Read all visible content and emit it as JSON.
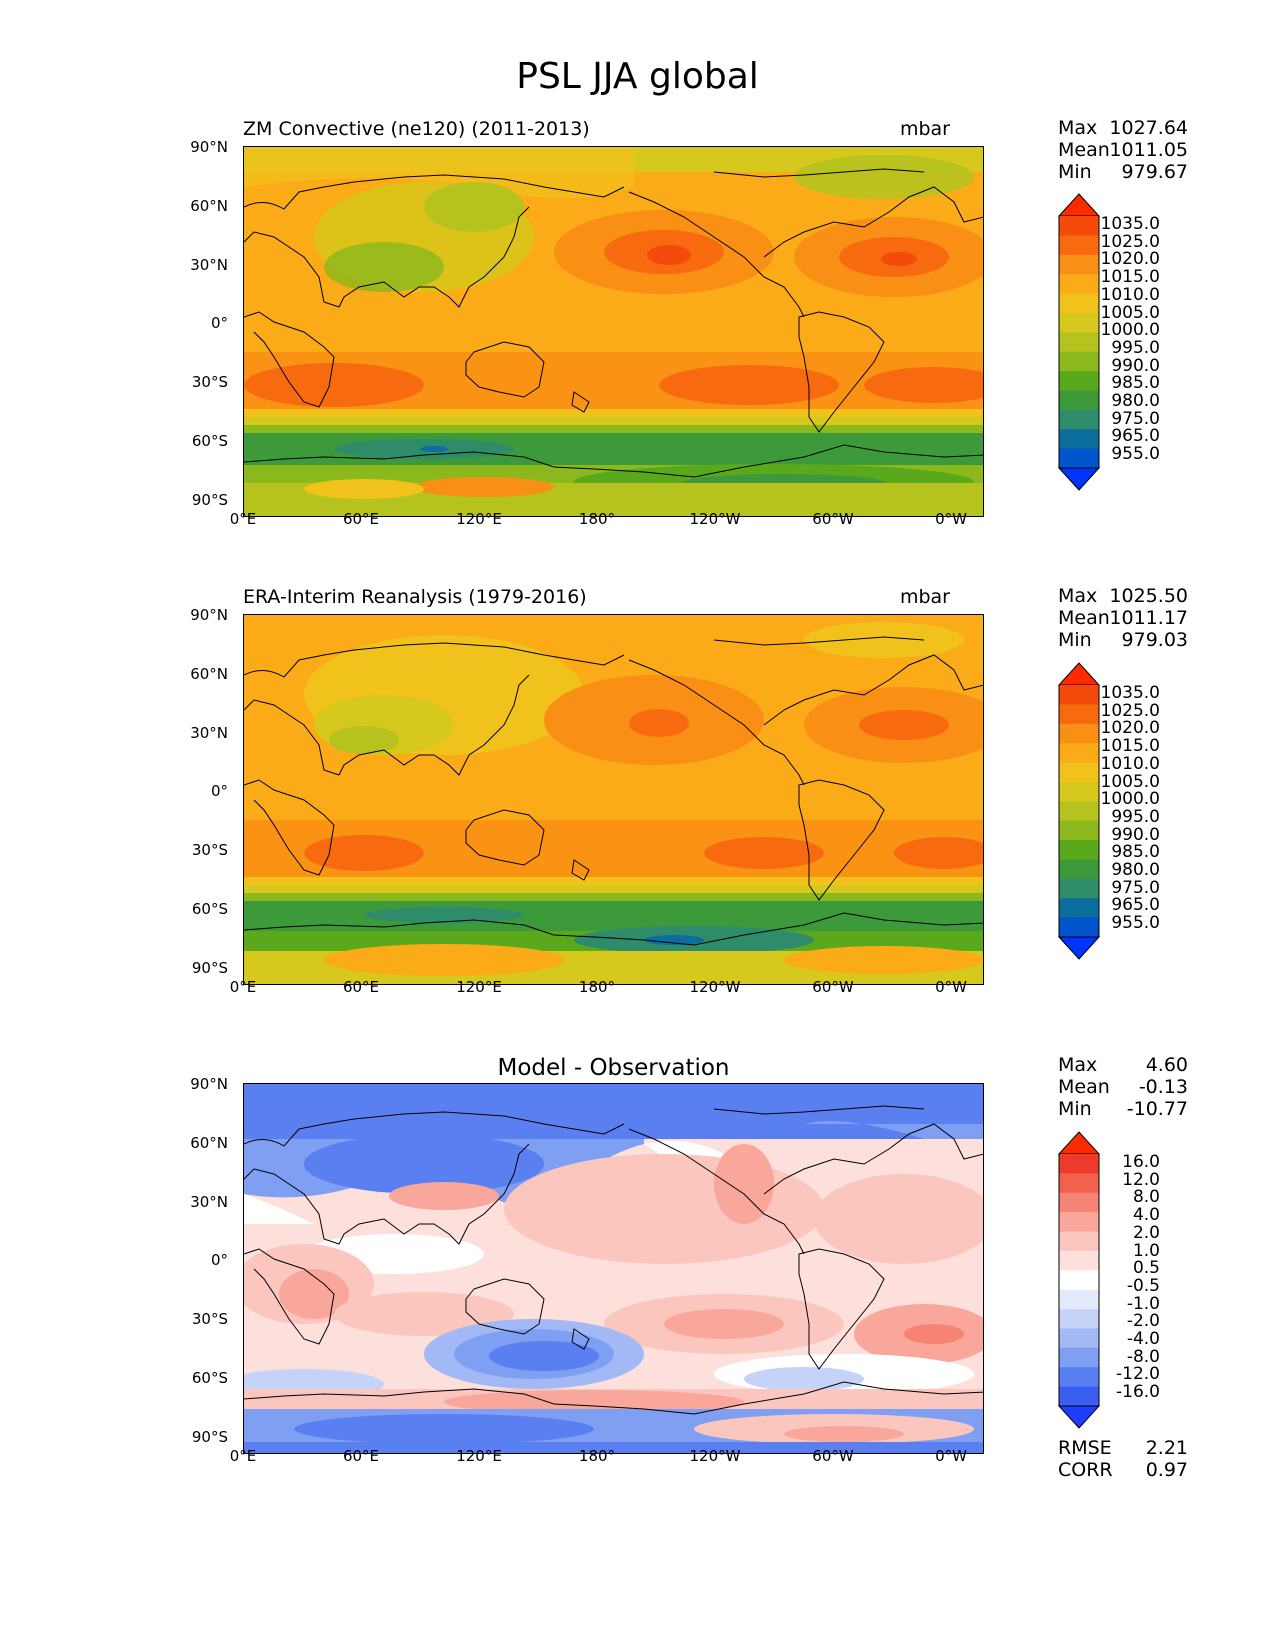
{
  "figure": {
    "title": "PSL JJA global"
  },
  "axes": {
    "lat_labels": [
      "90°N",
      "60°N",
      "30°N",
      "0°",
      "30°S",
      "60°S",
      "90°S"
    ],
    "lon_labels": [
      "0°E",
      "60°E",
      "120°E",
      "180°",
      "120°W",
      "60°W",
      "0°W"
    ]
  },
  "panels": [
    {
      "id": "model",
      "title": "ZM Convective (ne120) (2011-2013)",
      "units": "mbar",
      "stats": [
        {
          "label": "Max",
          "value": "1027.64"
        },
        {
          "label": "Mean",
          "value": "1011.05"
        },
        {
          "label": "Min",
          "value": "979.67"
        }
      ],
      "colorbar_levels": [
        "1035.0",
        "1025.0",
        "1020.0",
        "1015.0",
        "1010.0",
        "1005.0",
        "1000.0",
        "995.0",
        "990.0",
        "985.0",
        "980.0",
        "975.0",
        "965.0",
        "955.0"
      ]
    },
    {
      "id": "obs",
      "title": "ERA-Interim Reanalysis (1979-2016)",
      "units": "mbar",
      "stats": [
        {
          "label": "Max",
          "value": "1025.50"
        },
        {
          "label": "Mean",
          "value": "1011.17"
        },
        {
          "label": "Min",
          "value": "979.03"
        }
      ],
      "colorbar_levels": [
        "1035.0",
        "1025.0",
        "1020.0",
        "1015.0",
        "1010.0",
        "1005.0",
        "1000.0",
        "995.0",
        "990.0",
        "985.0",
        "980.0",
        "975.0",
        "965.0",
        "955.0"
      ]
    },
    {
      "id": "diff",
      "title": "Model - Observation",
      "units": "",
      "stats": [
        {
          "label": "Max",
          "value": "4.60"
        },
        {
          "label": "Mean",
          "value": "-0.13"
        },
        {
          "label": "Min",
          "value": "-10.77"
        }
      ],
      "colorbar_levels": [
        "16.0",
        "12.0",
        "8.0",
        "4.0",
        "2.0",
        "1.0",
        "0.5",
        "-0.5",
        "-1.0",
        "-2.0",
        "-4.0",
        "-8.0",
        "-12.0",
        "-16.0"
      ],
      "metrics": [
        {
          "label": "RMSE",
          "value": "2.21"
        },
        {
          "label": "CORR",
          "value": "0.97"
        }
      ]
    }
  ],
  "colors": {
    "psl_scale": [
      "#0033ff",
      "#0055cc",
      "#0b6e9c",
      "#2e8c6a",
      "#3d9a3a",
      "#5aa91c",
      "#8bb81c",
      "#b6c21e",
      "#d6c81c",
      "#f2c21c",
      "#fbab18",
      "#f98f14",
      "#f76a10",
      "#f44a0c",
      "#ff2a00"
    ],
    "diff_scale": [
      "#1f3cff",
      "#3a5ef2",
      "#5a7ff0",
      "#7f9ff2",
      "#a3b9f5",
      "#c6d3f8",
      "#e3eafc",
      "#ffffff",
      "#fde0dc",
      "#fbc6bd",
      "#f8a79a",
      "#f68474",
      "#f2604e",
      "#ee3a2a",
      "#ff2a00"
    ]
  }
}
